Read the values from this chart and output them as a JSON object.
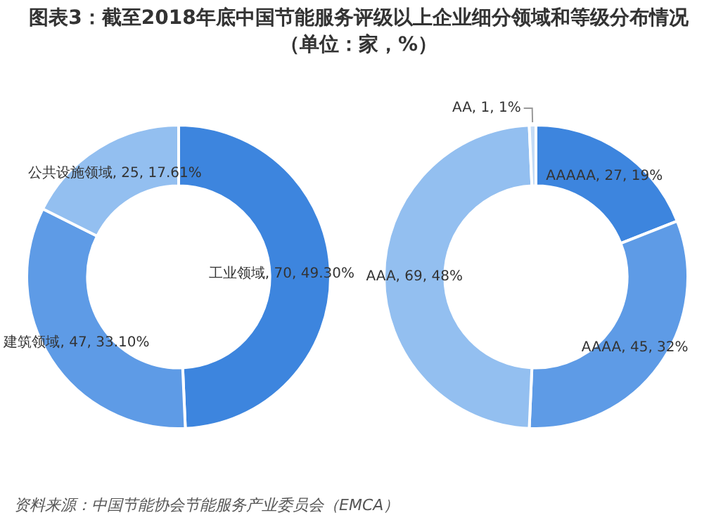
{
  "chart_data": [
    {
      "type": "donut",
      "title": "图表3：截至2018年底中国节能服务评级以上企业细分领域和等级分布情况（单位：家，%）",
      "categories": [
        "工业领域",
        "建筑领域",
        "公共设施领域"
      ],
      "values": [
        70,
        47,
        25
      ],
      "colors": [
        "#3d85de",
        "#5e9be6",
        "#93bff0"
      ],
      "value_labels": [
        ", 70, 49.30%",
        ", 47, 33.10%",
        ", 25, 17.61%"
      ],
      "legend": false,
      "annotations": [
        "资料来源：中国节能协会节能服务产业委员会（EMCA）"
      ]
    },
    {
      "type": "donut",
      "categories": [
        "AAAAA",
        "AAAA",
        "AAA",
        "AA"
      ],
      "values": [
        27,
        45,
        69,
        1
      ],
      "colors": [
        "#3d85de",
        "#5e9be6",
        "#93bff0",
        "#c5dcf6"
      ],
      "value_labels": [
        ", 27, 19%",
        ", 45, 32%",
        ", 69, 48%",
        ", 1, 1%"
      ],
      "legend": false
    }
  ]
}
